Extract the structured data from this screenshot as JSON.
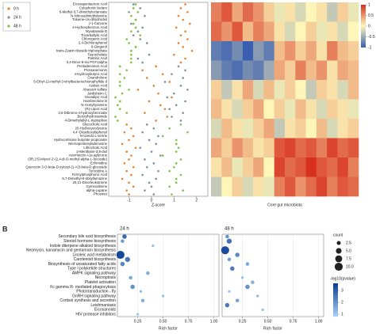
{
  "chart_data": [
    {
      "type": "dot",
      "panel_label": "A",
      "xlabel": "Z-score",
      "legend": "upper left",
      "xlim": [
        -1.9,
        2.5
      ],
      "xticks": [
        -1,
        0,
        1,
        2
      ],
      "categories": [
        "Eicosapentaenoic Acid",
        "Colophonic lactam",
        "6-Methyl-3,7-dimethyloctanoate",
        "N-Nitrosodimethylamine",
        "Toluene-cis-dihydrodiol",
        "(+)-Carvone",
        "4-Hydroxybenzoic Acid",
        "Myxalamide B",
        "Tricarballylic Acid",
        "Chlorogenic Acid",
        "2,4-Dichlorophenol",
        "8-Gingerol",
        "trans-Zeatin riboside triphosphate",
        "Taurocholate",
        "Palmitic Acid",
        "3,4-Dinor-8-iso PGF1alpha",
        "Pentadecanoic Acid",
        "Protoanemonin",
        "4-Hydroxybutyric Acid",
        "Oxandrolone",
        "5-Ethyl-12-methyl-3-vinylbacteriochlorophyllide d",
        "Azelaic Acid",
        "Abacavir sulfate",
        "Jardisheim C",
        "Oxoadipic Acid",
        "Hamberolone B",
        "N-Acetyltyramine",
        "(R)-Lipoic Acid",
        "3,5-Dibromo-4-hydroxybenzoate",
        "Benzylhydroxamide",
        "4-Dimethylallyl-L-tryptophan",
        "Glycocholic Acid",
        "20-Hydroxyecdysone",
        "4,4'-Dicarboxybiphenyl",
        "N-Ureido-L-serine",
        "Hydrocortisone butyrate propionate",
        "N6-Isopentenyladenosine",
        "Lithocholic Acid",
        "p-Menthane-3,8-diol",
        "Avermectin A1a aglycone",
        "(3R,2'S)-Myxol 2'-(2,4-di-O-methyl-alpha-L-fucoside)",
        "Echimidine",
        "Quercetin 3-O-beta-D-xylosyl-(1->2)-beta-D-glucoside",
        "Tyrocidine A",
        "Formylphosphonic Acid",
        "6,7-Dimethyl-8-ribityllumazine",
        "20,21-Dinorleukotriene",
        "Gymnodimine",
        "alpha-Lupane",
        "Phosmet"
      ],
      "series": [
        {
          "name": "0 h",
          "color": "#e8822e",
          "values": [
            1.5,
            1.3,
            1.6,
            1.2,
            1.4,
            1.7,
            1.1,
            1.5,
            1.3,
            1.6,
            1.2,
            1.4,
            1.8,
            1.0,
            1.5,
            1.3,
            0.2,
            -0.4,
            0.5,
            -0.2,
            0.8,
            0.1,
            -0.6,
            0.3,
            0.9,
            -0.1,
            0.4,
            0.6,
            -0.3,
            0.7,
            0.2,
            -1.1,
            -0.9,
            -1.2,
            -0.8,
            -1.0,
            -1.3,
            -0.7,
            -1.1,
            -0.9,
            -1.0,
            -1.2,
            -0.8,
            -1.1,
            -0.9,
            -1.3,
            -1.0,
            -0.8,
            -1.1,
            -1.0
          ]
        },
        {
          "name": "24 h",
          "color": "#7d8fa8",
          "values": [
            -0.8,
            -0.5,
            -1.0,
            -0.3,
            -0.7,
            -0.9,
            -0.4,
            -0.6,
            -0.8,
            -0.5,
            -0.2,
            -0.7,
            -0.9,
            -0.1,
            -0.6,
            -0.4,
            1.2,
            1.5,
            0.9,
            1.4,
            0.6,
            1.3,
            1.6,
            1.0,
            0.7,
            1.5,
            1.1,
            0.8,
            1.4,
            0.9,
            1.3,
            -0.2,
            0.1,
            -0.4,
            0.3,
            -0.1,
            0.2,
            -0.5,
            0.0,
            0.4,
            -0.3,
            0.1,
            -0.2,
            0.3,
            -0.4,
            0.2,
            -0.1,
            0.0,
            -0.3,
            0.1
          ]
        },
        {
          "name": "48 h",
          "color": "#7cc242",
          "values": [
            -0.7,
            -0.8,
            -0.6,
            -0.9,
            -0.7,
            -0.8,
            -0.7,
            -0.9,
            -0.5,
            -1.1,
            -1.0,
            -0.7,
            -0.9,
            -0.9,
            -0.9,
            -0.9,
            -1.4,
            -1.1,
            -1.4,
            -1.2,
            -1.4,
            -1.4,
            -1.0,
            -1.3,
            -1.6,
            -1.4,
            -1.5,
            -1.4,
            -1.1,
            -1.6,
            -1.5,
            1.3,
            0.8,
            1.6,
            0.5,
            1.1,
            1.1,
            1.2,
            1.1,
            0.5,
            1.3,
            1.1,
            1.0,
            0.8,
            1.3,
            1.1,
            1.1,
            0.8,
            1.4,
            0.9
          ]
        }
      ]
    },
    {
      "type": "heatmap",
      "xlabel": "Core gut microbiota",
      "clim": [
        -1,
        1
      ],
      "colorbar_ticks": [
        1,
        0.5,
        0,
        -0.5,
        -1
      ],
      "colors": [
        "#3b5fb0",
        "#fdf6b8",
        "#d7301f"
      ],
      "z": [
        [
          0.6,
          0.8,
          0.4,
          0.7,
          0.5,
          0.2,
          -0.1,
          0.1,
          -0.2,
          0.0,
          0.1,
          -0.3,
          0.2,
          -0.1
        ],
        [
          0.7,
          0.5,
          0.8,
          0.3,
          0.6,
          0.4,
          0.1,
          -0.2,
          0.0,
          0.2,
          -0.1,
          0.1,
          -0.2,
          0.0
        ],
        [
          -0.8,
          -0.9,
          -0.7,
          -1.0,
          -0.6,
          -0.8,
          0.3,
          0.5,
          0.2,
          0.4,
          0.1,
          0.6,
          0.3,
          0.2
        ],
        [
          -0.6,
          -0.8,
          -0.9,
          -0.7,
          -0.8,
          -0.5,
          0.4,
          0.2,
          0.6,
          0.3,
          0.5,
          0.1,
          0.4,
          0.3
        ],
        [
          0.2,
          -0.3,
          0.1,
          0.4,
          -0.2,
          0.3,
          -0.1,
          0.2,
          0.0,
          -0.3,
          0.2,
          0.1,
          -0.2,
          0.3
        ],
        [
          0.3,
          0.1,
          -0.2,
          0.2,
          0.4,
          0.0,
          0.2,
          -0.1,
          0.3,
          0.1,
          -0.2,
          0.2,
          0.1,
          -0.1
        ],
        [
          -0.2,
          0.3,
          0.1,
          -0.1,
          0.2,
          0.4,
          -0.3,
          0.1,
          0.2,
          0.0,
          0.3,
          -0.2,
          0.1,
          0.2
        ],
        [
          0.4,
          0.2,
          0.5,
          0.3,
          0.1,
          0.2,
          0.8,
          0.9,
          0.7,
          0.8,
          0.6,
          0.9,
          0.7,
          0.8
        ],
        [
          0.1,
          0.3,
          -0.1,
          0.2,
          0.4,
          0.0,
          0.9,
          0.7,
          0.8,
          1.0,
          0.8,
          0.7,
          0.9,
          0.6
        ],
        [
          -0.3,
          0.0,
          0.2,
          -0.2,
          0.1,
          -0.1,
          0.6,
          0.8,
          0.5,
          0.7,
          0.9,
          0.6,
          0.8,
          0.7
        ]
      ]
    },
    {
      "type": "bubble",
      "panel_label": "B",
      "xlabel": "Rich factor",
      "grid": true,
      "xlim": [
        0.05,
        1.05
      ],
      "xticks": [
        {
          "value": 0.25,
          "label": "0.25"
        },
        {
          "value": 0.5,
          "label": "0.50"
        },
        {
          "value": 0.75,
          "label": "0.75"
        },
        {
          "value": 1,
          "label": "1.00"
        }
      ],
      "categories": [
        "Secondary bile acid biosynthesis",
        "Steroid hormone biosynthesis",
        "Indole diterpene alkaloid biosynthesis",
        "Neomycin, kanamycin and gentamicin biosynthesis",
        "Linoleic acid metabolism",
        "Carotenoid biosynthesis",
        "Biosynthesis of unsaturated fatty acids",
        "Type I polyketide structures",
        "AMPK signaling pathway",
        "Necroptosis",
        "Platelet activation",
        "Fc gamma R- mediated phagocytosis",
        "Phototransduction - fly",
        "GnRH signaling pathway",
        "Cortisol synthesis and secretion",
        "Leishmaniasis",
        "Eicosanoids",
        "HIV protease inhibitors"
      ],
      "panels": [
        {
          "title": "24 h",
          "x": [
            0.12,
            0.1,
            0.4,
            null,
            0.08,
            0.15,
            0.1,
            null,
            0.35,
            0.18,
            null,
            0.2,
            0.28,
            0.5,
            0.3,
            null,
            null,
            0.25
          ],
          "count": [
            3,
            2,
            1,
            null,
            10,
            4,
            3,
            null,
            2,
            2,
            null,
            3,
            1,
            1,
            2,
            null,
            null,
            1
          ],
          "pvalue": [
            2.8,
            1.8,
            1.2,
            null,
            3.4,
            2.5,
            2.2,
            null,
            1.5,
            1.6,
            null,
            2.0,
            1.3,
            1.2,
            1.5,
            null,
            null,
            1.1
          ]
        },
        {
          "title": "48 h",
          "x": [
            0.1,
            0.12,
            null,
            0.08,
            0.2,
            0.12,
            0.3,
            0.15,
            null,
            0.25,
            0.35,
            0.3,
            0.12,
            0.4,
            0.2,
            0.1,
            0.45,
            null
          ],
          "count": [
            2,
            4,
            null,
            10,
            3,
            2,
            2,
            3,
            null,
            1,
            2,
            3,
            1,
            1,
            2,
            3,
            1,
            null
          ],
          "pvalue": [
            2.0,
            2.6,
            null,
            3.3,
            2.2,
            1.8,
            1.6,
            2.4,
            null,
            1.2,
            1.5,
            2.0,
            1.1,
            1.3,
            1.7,
            2.5,
            1.2,
            null
          ]
        }
      ],
      "size_legend": {
        "title": "count",
        "ticks": [
          2.5,
          {
            "value": 5,
            "label": "5.0"
          },
          7.5,
          {
            "value": 10,
            "label": "10.0"
          }
        ]
      },
      "color_legend": {
        "title": "-log10(pvalue)",
        "lim": [
          0.8,
          3.6
        ],
        "ticks": [
          3,
          2,
          1
        ],
        "colors": [
          "#a9d3f5",
          "#0b3d91"
        ]
      }
    }
  ]
}
